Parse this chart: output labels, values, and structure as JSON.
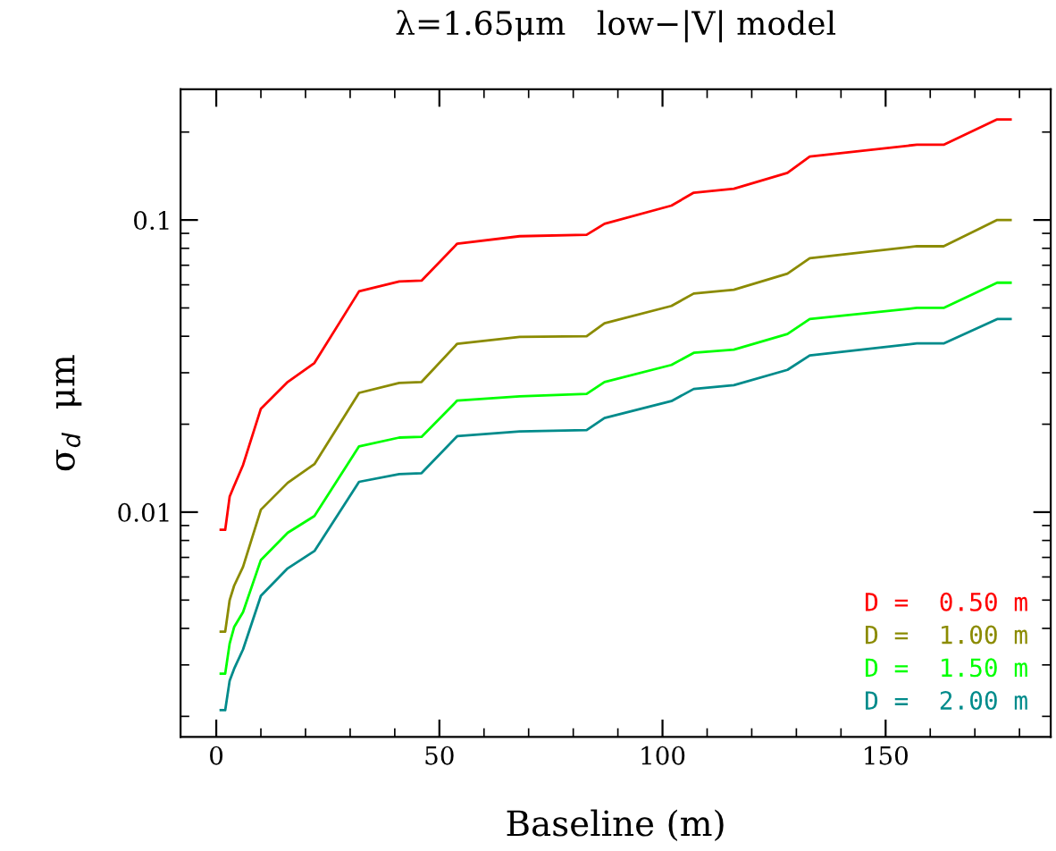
{
  "chart_data": {
    "type": "line",
    "title": "λ=1.65μm   low−|V| model",
    "xlabel": "Baseline (m)",
    "ylabel": "σ$_{d}$  μm",
    "x": [
      1,
      2,
      3,
      4,
      6,
      10,
      16,
      22,
      32,
      41,
      46,
      54,
      68,
      83,
      87,
      102,
      107,
      116,
      128,
      133,
      157,
      163,
      175,
      178
    ],
    "series": [
      {
        "name": "D =  0.50 m",
        "color": "#ff0000",
        "values": [
          0.0087,
          0.0087,
          0.0113,
          0.0123,
          0.0145,
          0.0226,
          0.0279,
          0.0324,
          0.057,
          0.0616,
          0.062,
          0.083,
          0.088,
          0.089,
          0.097,
          0.112,
          0.124,
          0.128,
          0.145,
          0.165,
          0.181,
          0.181,
          0.221,
          0.221
        ]
      },
      {
        "name": "D =  1.00 m",
        "color": "#8b8b00",
        "values": [
          0.0039,
          0.0039,
          0.005,
          0.0056,
          0.0065,
          0.0102,
          0.0126,
          0.0146,
          0.0256,
          0.0277,
          0.0279,
          0.0377,
          0.0398,
          0.04,
          0.0443,
          0.0508,
          0.056,
          0.0577,
          0.0655,
          0.074,
          0.0813,
          0.0813,
          0.1,
          0.1
        ]
      },
      {
        "name": "D =  1.50 m",
        "color": "#00ff00",
        "values": [
          0.0028,
          0.0028,
          0.00355,
          0.00404,
          0.00455,
          0.00686,
          0.0085,
          0.0097,
          0.0168,
          0.018,
          0.0181,
          0.0241,
          0.0249,
          0.0254,
          0.0279,
          0.0319,
          0.0351,
          0.036,
          0.0407,
          0.0458,
          0.05,
          0.05,
          0.061,
          0.061
        ]
      },
      {
        "name": "D =  2.00 m",
        "color": "#008b8b",
        "values": [
          0.0021,
          0.0021,
          0.00265,
          0.00291,
          0.00339,
          0.00517,
          0.00642,
          0.00736,
          0.0127,
          0.0135,
          0.0136,
          0.0182,
          0.0189,
          0.0191,
          0.021,
          0.024,
          0.0264,
          0.0272,
          0.0307,
          0.0344,
          0.0378,
          0.0378,
          0.0458,
          0.0458
        ]
      }
    ],
    "log": "y",
    "xlim": [
      -8,
      187
    ],
    "ylim": [
      0.0017,
      0.28
    ],
    "xticks": [
      0,
      50,
      100,
      150
    ],
    "yticks": [
      0.01,
      0.1
    ],
    "legend": "bottom right",
    "grid": false,
    "marker": "none",
    "line_style": "solid"
  }
}
